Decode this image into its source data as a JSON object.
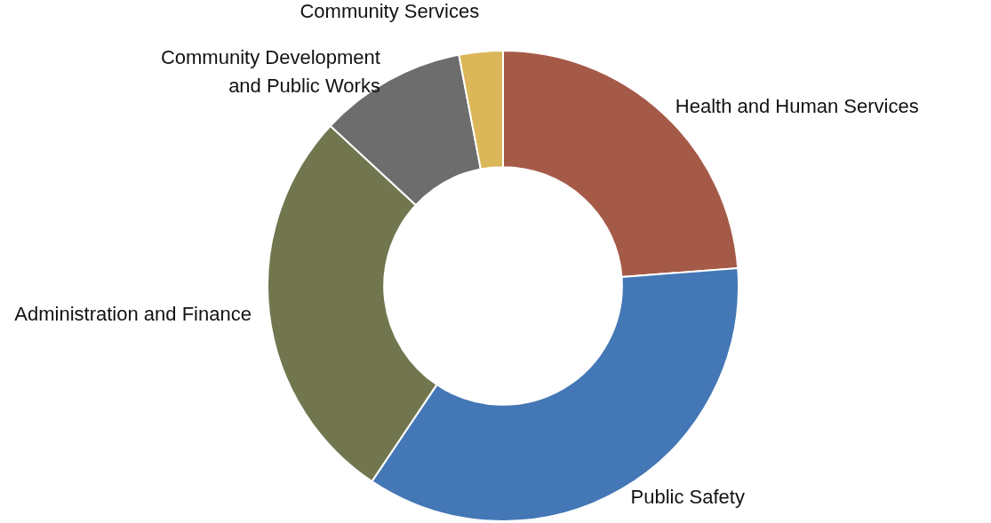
{
  "chart_data": {
    "type": "donut",
    "categories": [
      "Health and Human Services",
      "Public Safety",
      "Administration and Finance",
      "Community Development\nand Public Works",
      "Community Services"
    ],
    "values": [
      23.8,
      35.6,
      27.5,
      10.1,
      3.0
    ],
    "colors": [
      "#a55a48",
      "#4477b5",
      "#72764e",
      "#6d6d6d",
      "#dbb759"
    ]
  }
}
